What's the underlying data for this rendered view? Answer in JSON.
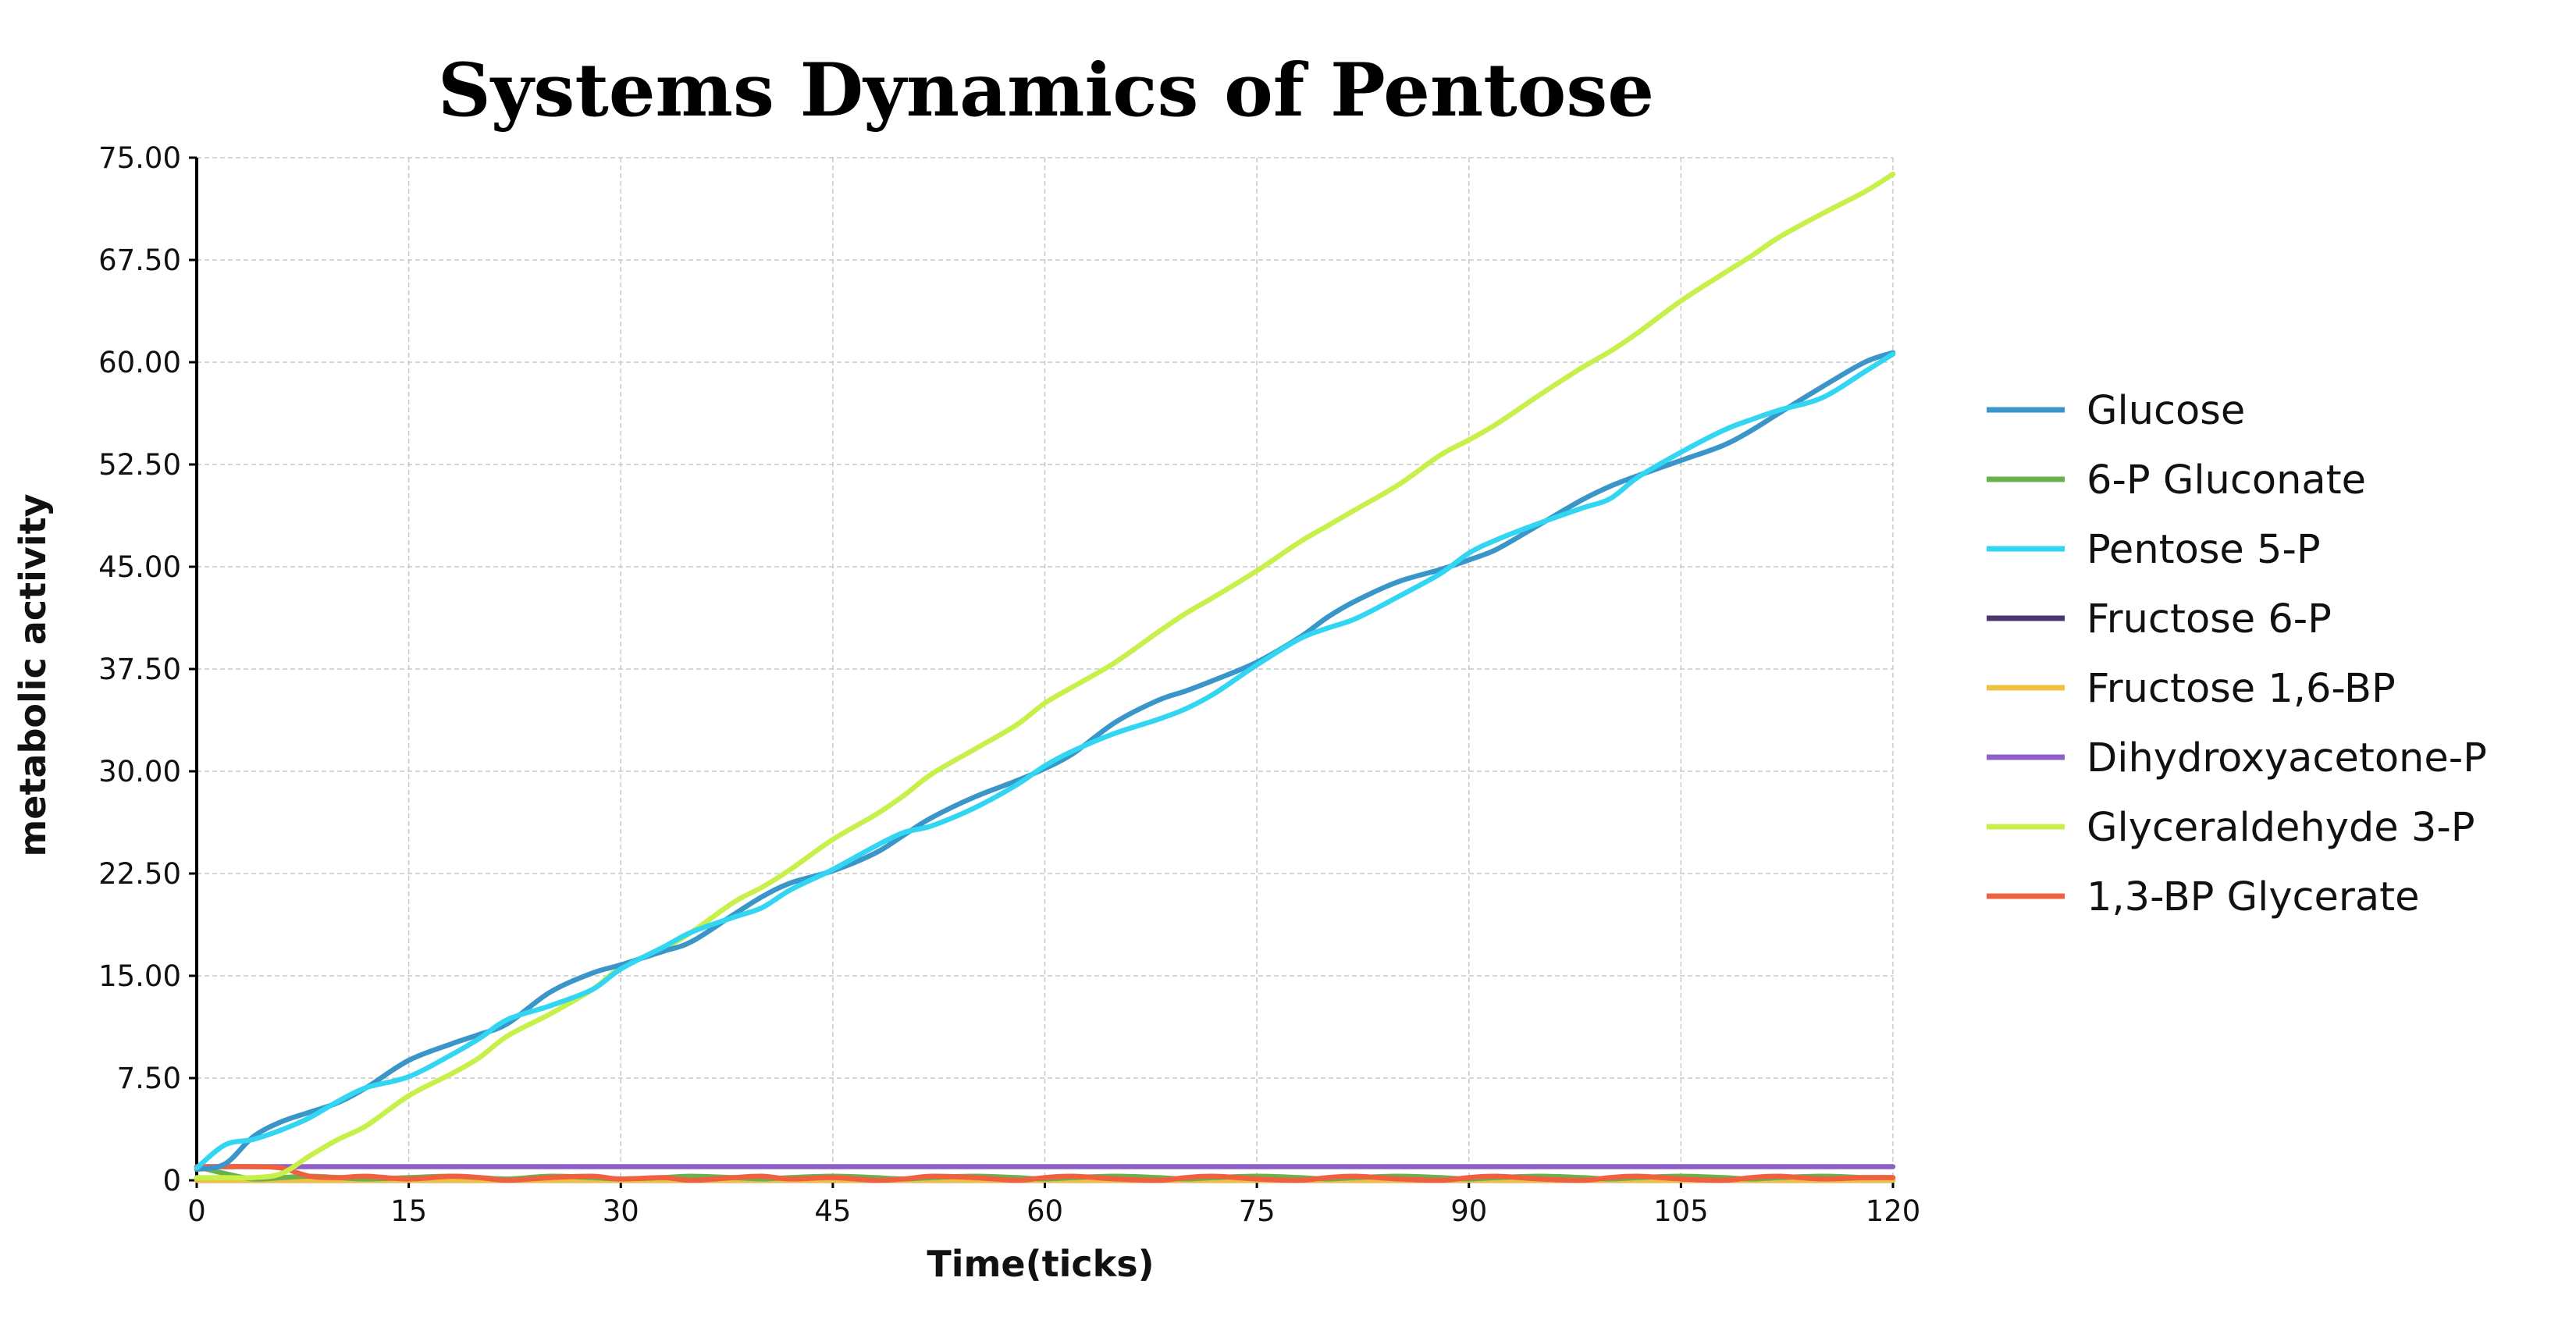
{
  "chart_data": {
    "type": "line",
    "title": "Systems Dynamics of Pentose",
    "xlabel": "Time(ticks)",
    "ylabel": "metabolic activity",
    "xlim": [
      0,
      120
    ],
    "ylim": [
      0,
      75
    ],
    "x_ticks": [
      "0",
      "15",
      "30",
      "45",
      "60",
      "75",
      "90",
      "105",
      "120"
    ],
    "y_ticks": [
      "0",
      "7.50",
      "15.00",
      "22.50",
      "30.00",
      "37.50",
      "45.00",
      "52.50",
      "60.00",
      "67.50",
      "75.00"
    ],
    "grid": true,
    "legend_position": "right",
    "x": [
      0,
      2,
      4,
      6,
      8,
      10,
      12,
      15,
      18,
      20,
      22,
      25,
      28,
      30,
      33,
      35,
      38,
      40,
      42,
      45,
      48,
      50,
      52,
      55,
      58,
      60,
      62,
      65,
      68,
      70,
      72,
      75,
      78,
      80,
      82,
      85,
      88,
      90,
      92,
      95,
      98,
      100,
      102,
      105,
      108,
      110,
      112,
      115,
      118,
      120
    ],
    "series": [
      {
        "name": "Glucose",
        "color": "#3a96c8",
        "values": [
          0.8,
          1.2,
          3.2,
          4.3,
          5.0,
          5.7,
          6.8,
          8.8,
          10.0,
          10.7,
          11.5,
          13.8,
          15.2,
          15.8,
          16.8,
          17.5,
          19.5,
          20.8,
          21.8,
          22.7,
          24.0,
          25.3,
          26.6,
          28.1,
          29.3,
          30.2,
          31.3,
          33.6,
          35.2,
          35.9,
          36.7,
          38.0,
          39.8,
          41.3,
          42.5,
          43.9,
          44.8,
          45.5,
          46.3,
          48.1,
          49.9,
          50.9,
          51.7,
          52.8,
          53.9,
          55.0,
          56.3,
          58.2,
          60.0,
          60.7
        ]
      },
      {
        "name": "6-P Gluconate",
        "color": "#6ab04c",
        "values": [
          1.0,
          0.5,
          0.1,
          0.2,
          0.3,
          0.2,
          0.1,
          0.2,
          0.3,
          0.2,
          0.1,
          0.3,
          0.2,
          0.1,
          0.2,
          0.3,
          0.2,
          0.1,
          0.2,
          0.3,
          0.2,
          0.1,
          0.2,
          0.3,
          0.2,
          0.1,
          0.2,
          0.3,
          0.2,
          0.1,
          0.2,
          0.3,
          0.2,
          0.1,
          0.2,
          0.3,
          0.2,
          0.1,
          0.2,
          0.3,
          0.2,
          0.1,
          0.2,
          0.3,
          0.2,
          0.1,
          0.2,
          0.3,
          0.2,
          0.2
        ]
      },
      {
        "name": "Pentose 5-P",
        "color": "#33d6f2",
        "values": [
          0.9,
          2.6,
          3.0,
          3.7,
          4.6,
          5.8,
          6.8,
          7.6,
          9.2,
          10.4,
          11.8,
          12.8,
          14.0,
          15.5,
          17.1,
          18.2,
          19.3,
          20.0,
          21.3,
          22.8,
          24.5,
          25.5,
          26.0,
          27.3,
          29.0,
          30.4,
          31.5,
          32.8,
          33.8,
          34.6,
          35.7,
          37.8,
          39.7,
          40.5,
          41.2,
          42.8,
          44.5,
          46.0,
          47.0,
          48.2,
          49.3,
          50.0,
          51.6,
          53.4,
          55.0,
          55.8,
          56.5,
          57.4,
          59.3,
          60.6
        ]
      },
      {
        "name": "Fructose 6-P",
        "color": "#4a3770",
        "values": [
          0,
          0,
          0,
          0,
          0,
          0,
          0,
          0,
          0,
          0,
          0,
          0,
          0,
          0,
          0,
          0,
          0,
          0,
          0,
          0,
          0,
          0,
          0,
          0,
          0,
          0,
          0,
          0,
          0,
          0,
          0,
          0,
          0,
          0,
          0,
          0,
          0,
          0,
          0,
          0,
          0,
          0,
          0,
          0,
          0,
          0,
          0,
          0,
          0,
          0
        ]
      },
      {
        "name": "Fructose 1,6-BP",
        "color": "#f0c040",
        "values": [
          0,
          0,
          0,
          0,
          0,
          0,
          0,
          0,
          0,
          0,
          0,
          0,
          0,
          0,
          0,
          0,
          0,
          0,
          0,
          0,
          0,
          0,
          0,
          0,
          0,
          0,
          0,
          0,
          0,
          0,
          0,
          0,
          0,
          0,
          0,
          0,
          0,
          0,
          0,
          0,
          0,
          0,
          0,
          0,
          0,
          0,
          0,
          0,
          0,
          0
        ]
      },
      {
        "name": "Dihydroxyacetone-P",
        "color": "#8f5fc8",
        "values": [
          1.0,
          1.0,
          1.0,
          1.0,
          1.0,
          1.0,
          1.0,
          1.0,
          1.0,
          1.0,
          1.0,
          1.0,
          1.0,
          1.0,
          1.0,
          1.0,
          1.0,
          1.0,
          1.0,
          1.0,
          1.0,
          1.0,
          1.0,
          1.0,
          1.0,
          1.0,
          1.0,
          1.0,
          1.0,
          1.0,
          1.0,
          1.0,
          1.0,
          1.0,
          1.0,
          1.0,
          1.0,
          1.0,
          1.0,
          1.0,
          1.0,
          1.0,
          1.0,
          1.0,
          1.0,
          1.0,
          1.0,
          1.0,
          1.0,
          1.0
        ]
      },
      {
        "name": "Glyceraldehyde 3-P",
        "color": "#c8f04a",
        "values": [
          0.2,
          0.2,
          0.2,
          0.5,
          1.8,
          3.0,
          4.0,
          6.2,
          7.8,
          9.0,
          10.6,
          12.2,
          14.0,
          15.6,
          17.0,
          18.2,
          20.4,
          21.5,
          22.8,
          25.0,
          26.8,
          28.2,
          29.8,
          31.6,
          33.4,
          35.0,
          36.2,
          38.0,
          40.2,
          41.6,
          42.8,
          44.7,
          46.8,
          48.0,
          49.2,
          51.0,
          53.2,
          54.3,
          55.5,
          57.6,
          59.6,
          60.8,
          62.2,
          64.5,
          66.5,
          67.8,
          69.2,
          70.9,
          72.5,
          73.8
        ]
      },
      {
        "name": "1,3-BP Glycerate",
        "color": "#f06040",
        "values": [
          1.0,
          1.0,
          1.0,
          0.9,
          0.3,
          0.2,
          0.3,
          0.1,
          0.3,
          0.2,
          0.0,
          0.2,
          0.3,
          0.1,
          0.2,
          0.0,
          0.2,
          0.3,
          0.1,
          0.2,
          0.0,
          0.1,
          0.3,
          0.2,
          0.0,
          0.2,
          0.3,
          0.1,
          0.0,
          0.2,
          0.3,
          0.1,
          0.0,
          0.2,
          0.3,
          0.1,
          0.0,
          0.2,
          0.3,
          0.1,
          0.0,
          0.2,
          0.3,
          0.1,
          0.0,
          0.2,
          0.3,
          0.1,
          0.2,
          0.2
        ]
      }
    ]
  }
}
